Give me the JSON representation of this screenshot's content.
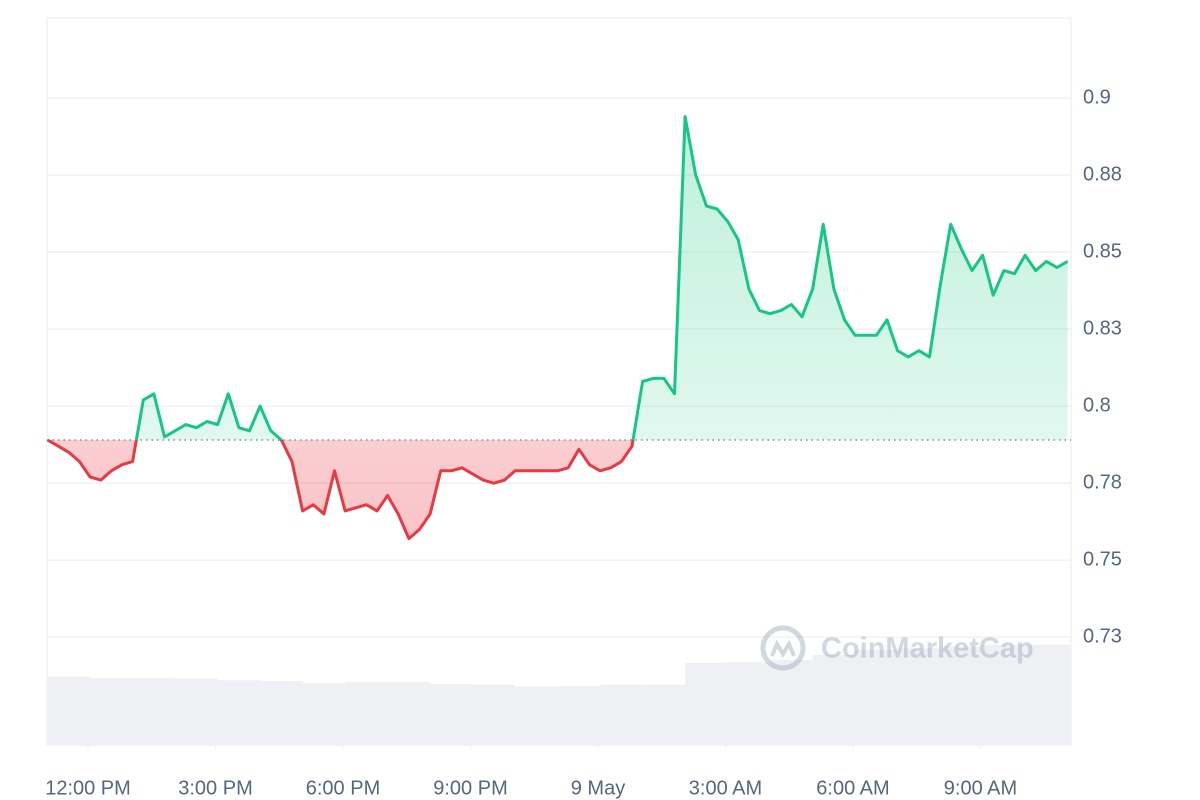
{
  "chart_data": {
    "type": "line",
    "watermark": "CoinMarketCap",
    "xlim": [
      11.035,
      35.13
    ],
    "xticks": [
      {
        "value": 12,
        "label": "12:00 PM"
      },
      {
        "value": 15,
        "label": "3:00 PM"
      },
      {
        "value": 18,
        "label": "6:00 PM"
      },
      {
        "value": 21,
        "label": "9:00 PM"
      },
      {
        "value": 24,
        "label": "9 May"
      },
      {
        "value": 27,
        "label": "3:00 AM"
      },
      {
        "value": 30,
        "label": "6:00 AM"
      },
      {
        "value": 33,
        "label": "9:00 AM"
      }
    ],
    "ylim": [
      0.69,
      0.926
    ],
    "yticks": [
      {
        "value": 0.725,
        "label": "0.73"
      },
      0.75,
      {
        "value": 0.775,
        "label": "0.78"
      },
      0.8,
      {
        "value": 0.825,
        "label": "0.83"
      },
      0.85,
      {
        "value": 0.875,
        "label": "0.88"
      },
      0.9
    ],
    "grid": true,
    "baseline": 0.789,
    "up_color": "#16c784",
    "down_color": "#ea3943",
    "x": [
      11.05,
      11.3,
      11.55,
      11.8,
      12.05,
      12.3,
      12.55,
      12.8,
      13.05,
      13.3,
      13.55,
      13.8,
      14.05,
      14.3,
      14.55,
      14.8,
      15.05,
      15.3,
      15.55,
      15.8,
      16.05,
      16.3,
      16.55,
      16.8,
      17.05,
      17.3,
      17.55,
      17.8,
      18.05,
      18.3,
      18.55,
      18.8,
      19.05,
      19.3,
      19.55,
      19.8,
      20.05,
      20.3,
      20.55,
      20.8,
      21.05,
      21.3,
      21.55,
      21.8,
      22.05,
      22.3,
      22.55,
      22.8,
      23.05,
      23.3,
      23.55,
      23.8,
      24.05,
      24.3,
      24.55,
      24.8,
      25.05,
      25.3,
      25.55,
      25.8,
      26.05,
      26.3,
      26.55,
      26.8,
      27.05,
      27.3,
      27.55,
      27.8,
      28.05,
      28.3,
      28.55,
      28.8,
      29.05,
      29.3,
      29.55,
      29.8,
      30.05,
      30.3,
      30.55,
      30.8,
      31.05,
      31.3,
      31.55,
      31.8,
      32.05,
      32.3,
      32.55,
      32.8,
      33.05,
      33.3,
      33.55,
      33.8,
      34.05,
      34.3,
      34.55,
      34.8,
      35.05
    ],
    "values": [
      0.789,
      0.787,
      0.785,
      0.782,
      0.777,
      0.776,
      0.779,
      0.781,
      0.782,
      0.802,
      0.804,
      0.79,
      0.792,
      0.794,
      0.793,
      0.795,
      0.794,
      0.804,
      0.793,
      0.792,
      0.8,
      0.792,
      0.789,
      0.782,
      0.766,
      0.768,
      0.765,
      0.779,
      0.766,
      0.767,
      0.768,
      0.766,
      0.771,
      0.765,
      0.757,
      0.76,
      0.765,
      0.779,
      0.779,
      0.78,
      0.778,
      0.776,
      0.775,
      0.776,
      0.779,
      0.779,
      0.779,
      0.779,
      0.779,
      0.78,
      0.786,
      0.781,
      0.779,
      0.78,
      0.782,
      0.787,
      0.808,
      0.809,
      0.809,
      0.804,
      0.894,
      0.875,
      0.865,
      0.864,
      0.86,
      0.854,
      0.838,
      0.831,
      0.83,
      0.831,
      0.833,
      0.829,
      0.838,
      0.859,
      0.838,
      0.828,
      0.823,
      0.823,
      0.823,
      0.828,
      0.818,
      0.816,
      0.818,
      0.816,
      0.839,
      0.859,
      0.851,
      0.844,
      0.849,
      0.836,
      0.844,
      0.843,
      0.849,
      0.844,
      0.847,
      0.845,
      0.847
    ],
    "volume": {
      "y2lim": [
        0,
        1000
      ],
      "x": [
        11.05,
        12.05,
        13.05,
        14.05,
        15.05,
        16.05,
        17.05,
        18.05,
        19.05,
        20.05,
        21.05,
        22.05,
        23.05,
        24.05,
        25.05,
        26.05,
        27.05,
        28.05,
        29.05,
        30.05,
        31.05,
        32.05,
        33.05,
        34.05
      ],
      "values": [
        94,
        92,
        92,
        91,
        89,
        88,
        85,
        87,
        87,
        84,
        83,
        80,
        81,
        83,
        83,
        113,
        114,
        117,
        124,
        131,
        133,
        136,
        138,
        138
      ]
    }
  }
}
